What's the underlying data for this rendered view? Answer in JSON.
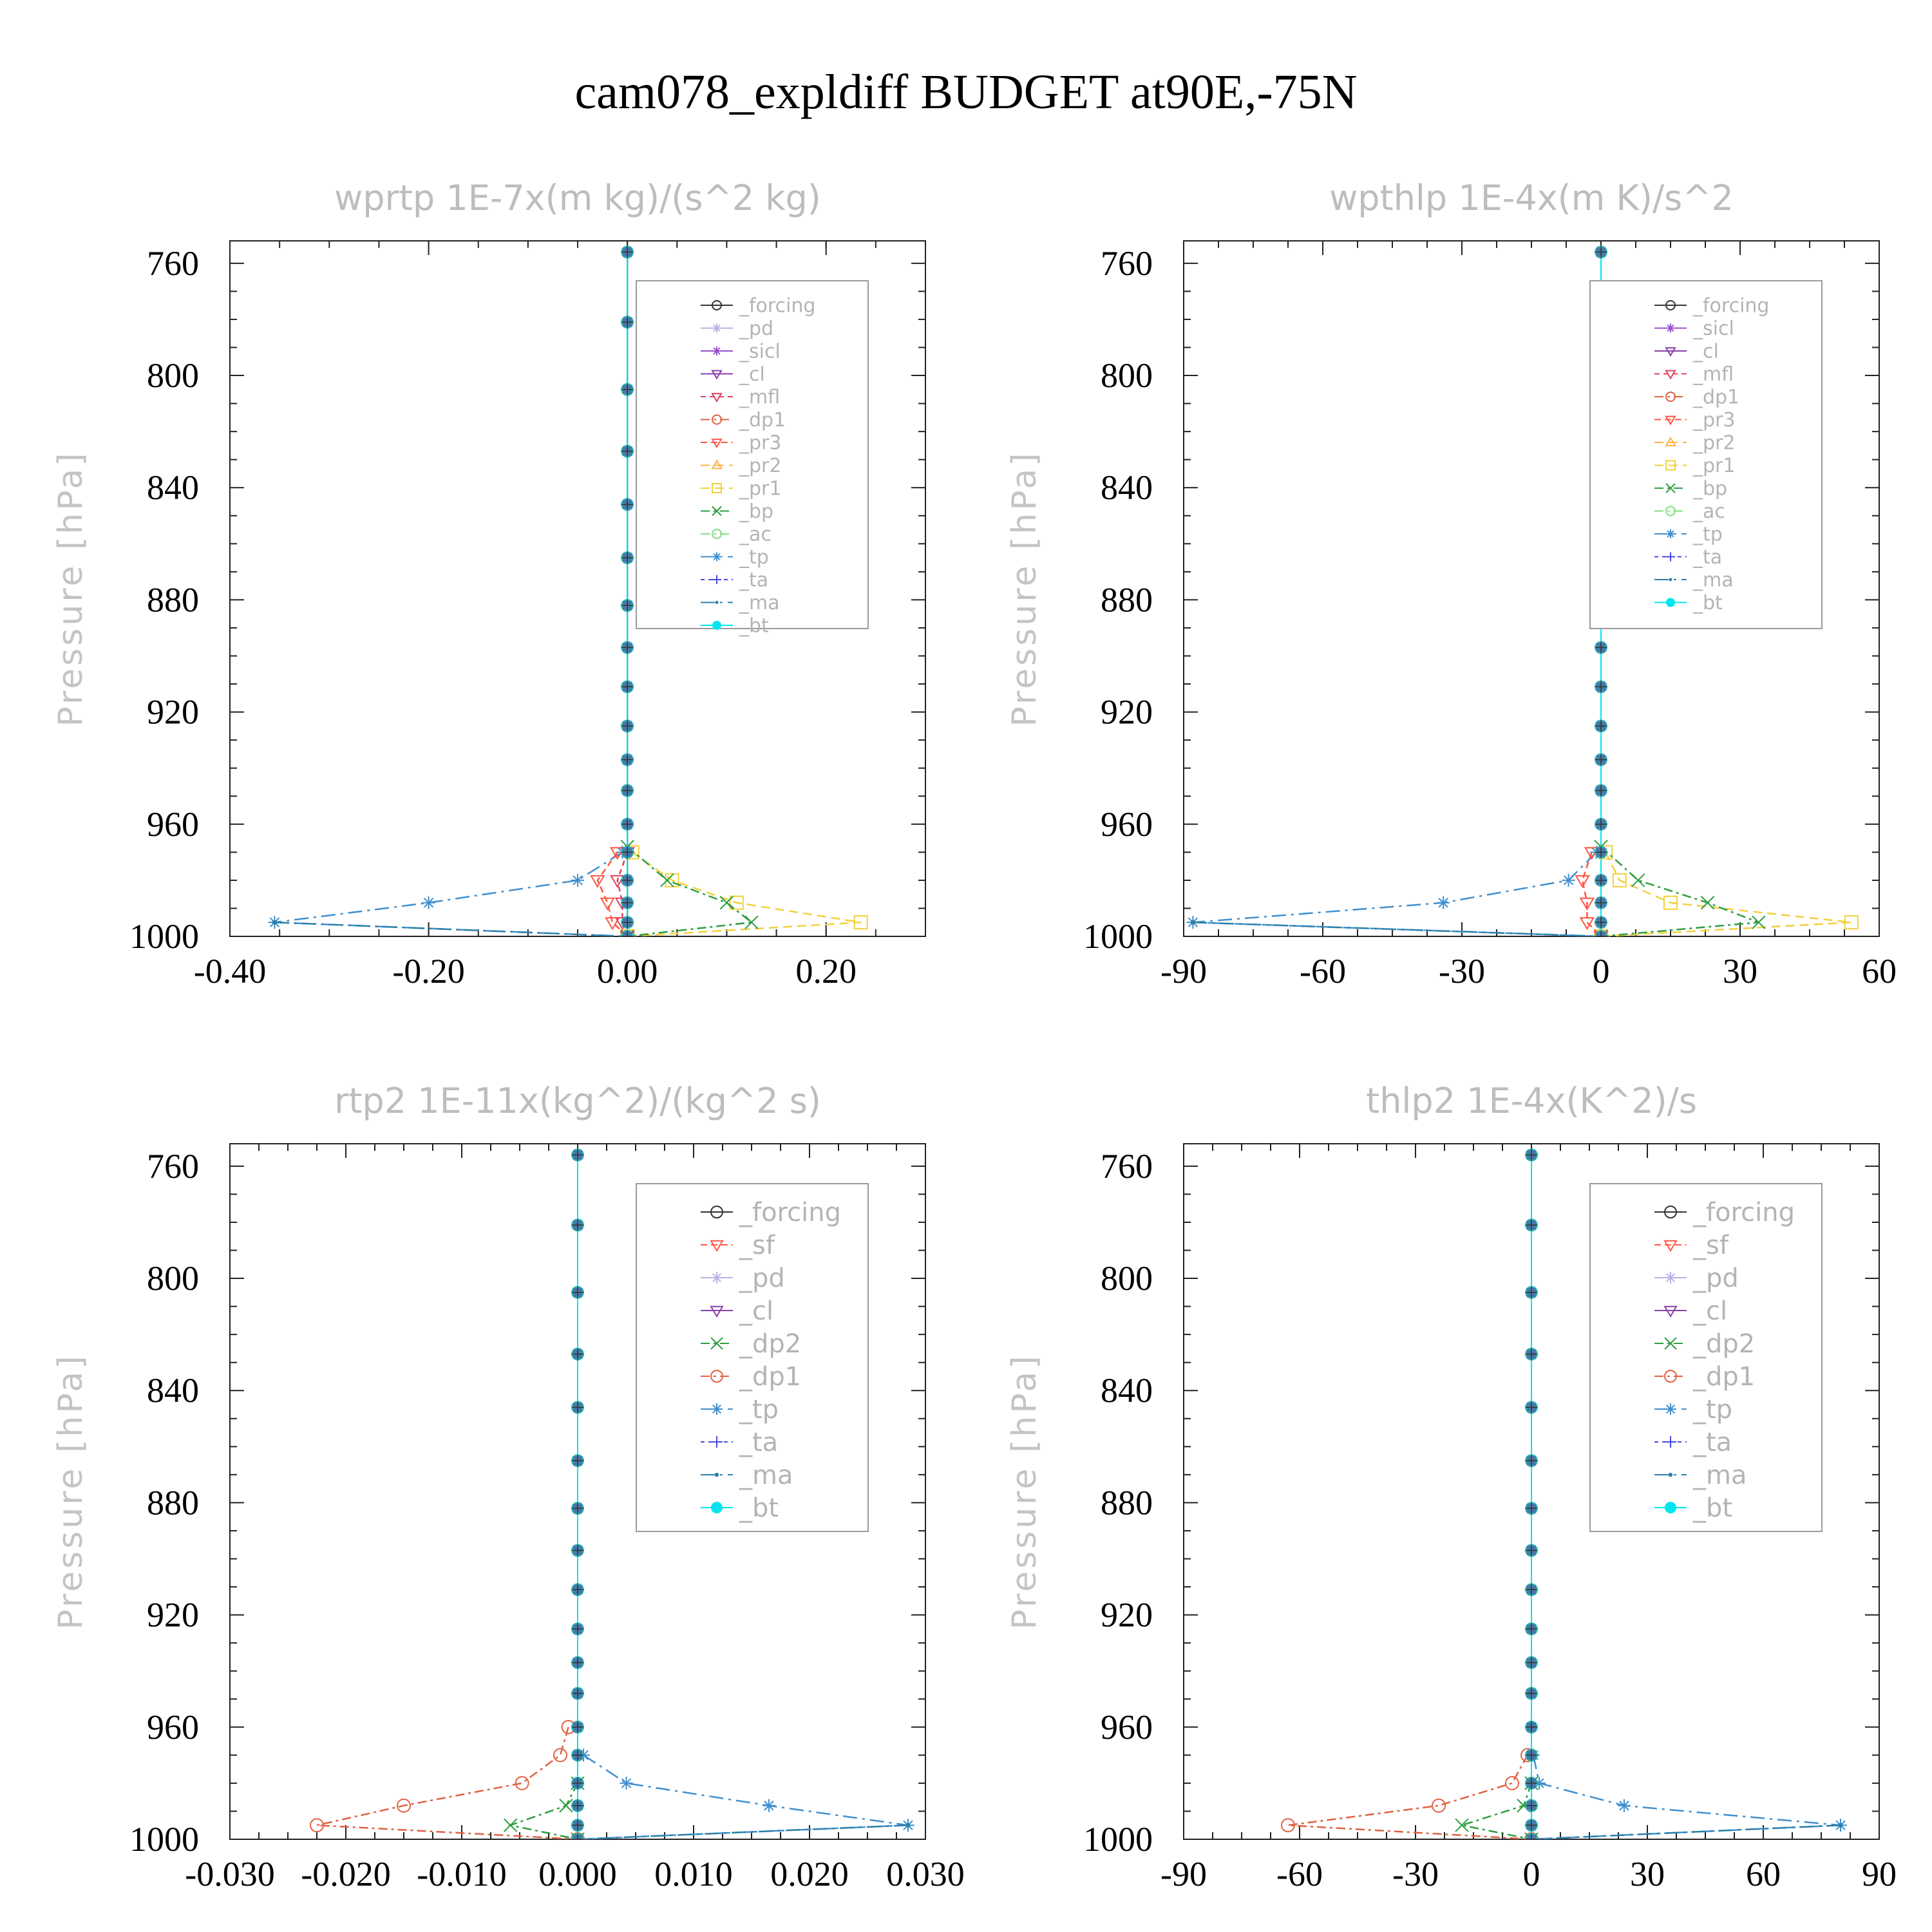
{
  "title": "cam078_expldiff  BUDGET at90E,-75N",
  "colors": {
    "_forcing": "#333333",
    "_pd": "#b9b1e6",
    "_sicl": "#9b4fcf",
    "_cl": "#8a3fa8",
    "_mfl": "#e0425f",
    "_dp1": "#e06040",
    "_pr3": "#ff5544",
    "_pr2": "#ffb347",
    "_pr1": "#f2d13a",
    "_bp": "#2e9e40",
    "_ac": "#7fe07f",
    "_tp": "#3f8fcf",
    "_ta": "#4a4ae0",
    "_ma": "#2a7fa8",
    "_bt": "#00e5f0",
    "_sf": "#ff5544",
    "_dp2": "#2e9e40"
  },
  "chart_data": [
    {
      "type": "line",
      "title": "wprtp  1E-7x(m kg)/(s^2 kg)",
      "ylabel": "Pressure [hPa]",
      "ylim": [
        1000,
        752
      ],
      "xlim": [
        -0.4,
        0.3
      ],
      "xticks": [
        -0.4,
        -0.2,
        0.0,
        0.2
      ],
      "xtick_labels": [
        "-0.40",
        "-0.20",
        "0.00",
        "0.20"
      ],
      "yticks": [
        760,
        800,
        840,
        880,
        920,
        960,
        1000
      ],
      "ytick_labels": [
        "760",
        "800",
        "840",
        "880",
        "920",
        "960",
        "1000"
      ],
      "legend": [
        "_forcing",
        "_pd",
        "_sicl",
        "_cl",
        "_mfl",
        "_dp1",
        "_pr3",
        "_pr2",
        "_pr1",
        "_bp",
        "_ac",
        "_tp",
        "_ta",
        "_ma",
        "_bt"
      ],
      "series": [
        {
          "name": "_tp",
          "p": [
            970,
            980,
            988,
            995,
            1000
          ],
          "x": [
            -0.005,
            -0.05,
            -0.2,
            -0.355,
            0.0
          ]
        },
        {
          "name": "_pr1",
          "p": [
            970,
            980,
            988,
            995,
            1000
          ],
          "x": [
            0.005,
            0.045,
            0.11,
            0.235,
            0.0
          ]
        },
        {
          "name": "_bp",
          "p": [
            968,
            980,
            988,
            995,
            1000
          ],
          "x": [
            0.0,
            0.04,
            0.1,
            0.125,
            0.0
          ]
        },
        {
          "name": "_pr3",
          "p": [
            970,
            980,
            988,
            995,
            1000
          ],
          "x": [
            -0.01,
            -0.03,
            -0.02,
            -0.015,
            0.0
          ]
        },
        {
          "name": "_mfl",
          "p": [
            970,
            980,
            988,
            995,
            1000
          ],
          "x": [
            0.0,
            -0.01,
            -0.005,
            -0.005,
            0.0
          ]
        },
        {
          "name": "_ma",
          "p": [
            995,
            1000
          ],
          "x": [
            -0.355,
            0.0
          ]
        }
      ]
    },
    {
      "type": "line",
      "title": "wpthlp  1E-4x(m K)/s^2",
      "ylabel": "Pressure [hPa]",
      "ylim": [
        1000,
        752
      ],
      "xlim": [
        -90,
        60
      ],
      "xticks": [
        -90,
        -60,
        -30,
        0,
        30,
        60
      ],
      "xtick_labels": [
        "-90",
        "-60",
        "-30",
        "0",
        "30",
        "60"
      ],
      "yticks": [
        760,
        800,
        840,
        880,
        920,
        960,
        1000
      ],
      "ytick_labels": [
        "760",
        "800",
        "840",
        "880",
        "920",
        "960",
        "1000"
      ],
      "legend": [
        "_forcing",
        "_sicl",
        "_cl",
        "_mfl",
        "_dp1",
        "_pr3",
        "_pr2",
        "_pr1",
        "_bp",
        "_ac",
        "_tp",
        "_ta",
        "_ma",
        "_bt"
      ],
      "series": [
        {
          "name": "_tp",
          "p": [
            970,
            980,
            988,
            995,
            1000
          ],
          "x": [
            -1,
            -7,
            -34,
            -88,
            0
          ]
        },
        {
          "name": "_pr1",
          "p": [
            970,
            980,
            988,
            995,
            1000
          ],
          "x": [
            1,
            4,
            15,
            54,
            0
          ]
        },
        {
          "name": "_bp",
          "p": [
            968,
            980,
            988,
            995,
            1000
          ],
          "x": [
            0,
            8,
            23,
            34,
            0
          ]
        },
        {
          "name": "_pr3",
          "p": [
            970,
            980,
            988,
            995,
            1000
          ],
          "x": [
            -2,
            -4,
            -3,
            -3,
            0
          ]
        },
        {
          "name": "_ma",
          "p": [
            995,
            1000
          ],
          "x": [
            -88,
            0
          ]
        }
      ]
    },
    {
      "type": "line",
      "title": "rtp2  1E-11x(kg^2)/(kg^2 s)",
      "ylabel": "Pressure [hPa]",
      "ylim": [
        1000,
        752
      ],
      "xlim": [
        -0.03,
        0.03
      ],
      "xticks": [
        -0.03,
        -0.02,
        -0.01,
        0.0,
        0.01,
        0.02,
        0.03
      ],
      "xtick_labels": [
        "-0.030",
        "-0.020",
        "-0.010",
        "0.000",
        "0.010",
        "0.020",
        "0.030"
      ],
      "yticks": [
        760,
        800,
        840,
        880,
        920,
        960,
        1000
      ],
      "ytick_labels": [
        "760",
        "800",
        "840",
        "880",
        "920",
        "960",
        "1000"
      ],
      "legend": [
        "_forcing",
        "_sf",
        "_pd",
        "_cl",
        "_dp2",
        "_dp1",
        "_tp",
        "_ta",
        "_ma",
        "_bt"
      ],
      "series": [
        {
          "name": "_tp",
          "p": [
            970,
            980,
            988,
            995,
            1000
          ],
          "x": [
            0.0005,
            0.0042,
            0.0165,
            0.0285,
            0.0
          ]
        },
        {
          "name": "_dp1",
          "p": [
            960,
            970,
            980,
            988,
            995,
            1000
          ],
          "x": [
            -0.0008,
            -0.0015,
            -0.0048,
            -0.015,
            -0.0225,
            0.0
          ]
        },
        {
          "name": "_dp2",
          "p": [
            980,
            988,
            995,
            1000
          ],
          "x": [
            0.0,
            -0.001,
            -0.0058,
            0.0
          ]
        },
        {
          "name": "_ma",
          "p": [
            995,
            1000
          ],
          "x": [
            0.0285,
            0.0
          ]
        }
      ]
    },
    {
      "type": "line",
      "title": "thlp2  1E-4x(K^2)/s",
      "ylabel": "Pressure [hPa]",
      "ylim": [
        1000,
        752
      ],
      "xlim": [
        -90,
        90
      ],
      "xticks": [
        -90,
        -60,
        -30,
        0,
        30,
        60,
        90
      ],
      "xtick_labels": [
        "-90",
        "-60",
        "-30",
        "0",
        "30",
        "60",
        "90"
      ],
      "yticks": [
        760,
        800,
        840,
        880,
        920,
        960,
        1000
      ],
      "ytick_labels": [
        "760",
        "800",
        "840",
        "880",
        "920",
        "960",
        "1000"
      ],
      "legend": [
        "_forcing",
        "_sf",
        "_pd",
        "_cl",
        "_dp2",
        "_dp1",
        "_tp",
        "_ta",
        "_ma",
        "_bt"
      ],
      "series": [
        {
          "name": "_tp",
          "p": [
            970,
            980,
            988,
            995,
            1000
          ],
          "x": [
            0.5,
            2,
            24,
            80,
            0
          ]
        },
        {
          "name": "_dp1",
          "p": [
            970,
            980,
            988,
            995,
            1000
          ],
          "x": [
            -1,
            -5,
            -24,
            -63,
            0
          ]
        },
        {
          "name": "_dp2",
          "p": [
            980,
            988,
            995,
            1000
          ],
          "x": [
            0,
            -2,
            -18,
            0
          ]
        },
        {
          "name": "_ma",
          "p": [
            995,
            1000
          ],
          "x": [
            80,
            0
          ]
        }
      ]
    }
  ]
}
